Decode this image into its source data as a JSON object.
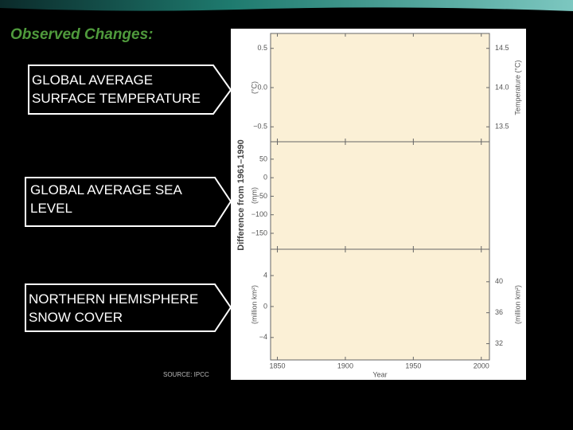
{
  "slide": {
    "title": "Observed Changes:",
    "boxes": [
      [
        "GLOBAL AVERAGE",
        "SURFACE TEMPERATURE"
      ],
      [
        "GLOBAL AVERAGE SEA",
        "LEVEL"
      ],
      [
        "NORTHERN HEMISPHERE",
        "SNOW COVER"
      ]
    ],
    "source": "SOURCE: IPCC"
  },
  "figure": {
    "ylabel": "Difference from 1961–1990"
  },
  "chart_data": [
    {
      "type": "line",
      "ylabel": "(°C)",
      "y2label": "Temperature (°C)",
      "ylim": [
        -0.69,
        0.69
      ],
      "yticks": [
        0.5,
        {
          "value": 0,
          "label": "0.0"
        },
        {
          "value": -0.5,
          "label": "−0.5"
        }
      ],
      "y2lim": [
        13.31,
        14.69
      ],
      "y2ticks": [
        14.5,
        {
          "value": 14,
          "label": "14.0"
        },
        13.5
      ]
    },
    {
      "type": "line",
      "ylabel": "(mm)",
      "ylim": [
        -193,
        97
      ],
      "yticks": [
        50,
        0,
        {
          "value": -50,
          "label": "−50"
        },
        {
          "value": -100,
          "label": "−100"
        },
        {
          "value": -150,
          "label": "−150"
        }
      ]
    },
    {
      "type": "line",
      "ylabel": "(million km²)",
      "y2label": "(million km²)",
      "xlabel": "Year",
      "ylim": [
        -6.9,
        7.4
      ],
      "yticks": [
        4,
        0,
        {
          "value": -4,
          "label": "−4"
        }
      ],
      "y2lim": [
        29.9,
        44.2
      ],
      "y2ticks": [
        40,
        36,
        32
      ],
      "xlim": [
        1845,
        2006
      ],
      "xticks": [
        1850,
        1900,
        1950,
        2000
      ]
    }
  ]
}
